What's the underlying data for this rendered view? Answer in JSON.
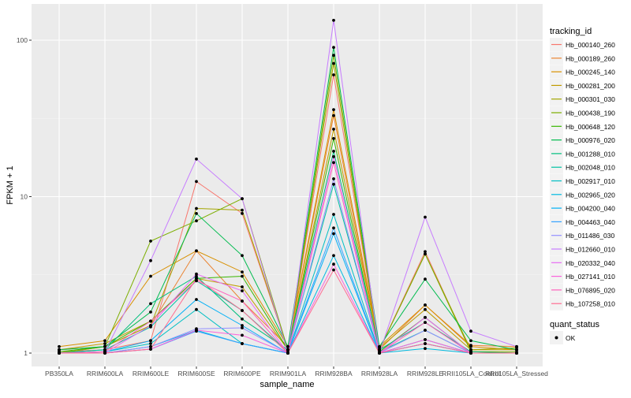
{
  "chart_data": {
    "type": "line",
    "title": "",
    "xlabel": "sample_name",
    "ylabel": "FPKM + 1",
    "yscale": "log10",
    "ylim": [
      0.95,
      150
    ],
    "yticks": [
      1,
      10,
      100
    ],
    "ytick_labels": [
      "1",
      "10",
      "100"
    ],
    "grid": true,
    "legend_position": "right",
    "categories": [
      "PB350LA",
      "RRIM600LA",
      "RRIM600LE",
      "RRIM600SE",
      "RRIM600PE",
      "RRIM901LA",
      "RRIM928BA",
      "RRIM928LA",
      "RRIM928LE",
      "RRII105LA_Control",
      "RRII105LA_Stressed"
    ],
    "legend_title": "tracking_id",
    "shape_legend_title": "quant_status",
    "shape_legend_items": [
      "OK"
    ],
    "series": [
      {
        "name": "Hb_000140_260",
        "color": "#F8766D",
        "values": [
          1.02,
          1.05,
          1.2,
          12.5,
          7.8,
          1.05,
          60,
          1.05,
          4.45,
          1.02,
          1.0
        ]
      },
      {
        "name": "Hb_000189_260",
        "color": "#EA8331",
        "values": [
          1.05,
          1.1,
          1.5,
          4.5,
          2.15,
          1.1,
          33,
          1.05,
          2.03,
          1.12,
          1.1
        ]
      },
      {
        "name": "Hb_000245_140",
        "color": "#D89000",
        "values": [
          1.1,
          1.2,
          3.1,
          4.5,
          3.3,
          1.1,
          36,
          1.1,
          2.03,
          1.1,
          1.05
        ]
      },
      {
        "name": "Hb_000281_200",
        "color": "#C09B00",
        "values": [
          1.05,
          1.15,
          1.6,
          3.0,
          2.65,
          1.05,
          27,
          1.08,
          1.9,
          1.05,
          1.05
        ]
      },
      {
        "name": "Hb_000301_030",
        "color": "#A3A500",
        "values": [
          1.0,
          1.1,
          1.5,
          8.4,
          8.2,
          1.05,
          71,
          1.05,
          4.3,
          1.05,
          1.08
        ]
      },
      {
        "name": "Hb_000438_190",
        "color": "#7CAE00",
        "values": [
          1.0,
          1.1,
          5.2,
          7.0,
          9.7,
          1.05,
          80,
          1.05,
          4.3,
          1.02,
          1.02
        ]
      },
      {
        "name": "Hb_000648_120",
        "color": "#39B600",
        "values": [
          1.02,
          1.1,
          1.6,
          3.0,
          3.1,
          1.05,
          23.5,
          1.02,
          1.69,
          1.0,
          1.0
        ]
      },
      {
        "name": "Hb_000976_020",
        "color": "#00BB4E",
        "values": [
          1.05,
          1.1,
          1.83,
          7.8,
          4.2,
          1.1,
          90,
          1.1,
          2.97,
          1.2,
          1.05
        ]
      },
      {
        "name": "Hb_001288_010",
        "color": "#00BF7D",
        "values": [
          1.0,
          1.05,
          2.07,
          3.1,
          1.65,
          1.05,
          19.5,
          1.05,
          1.57,
          1.02,
          1.0
        ]
      },
      {
        "name": "Hb_002048_010",
        "color": "#00C1A3",
        "values": [
          1.0,
          1.05,
          1.47,
          2.9,
          1.87,
          1.02,
          12,
          1.02,
          1.4,
          1.0,
          1.0
        ]
      },
      {
        "name": "Hb_002917_010",
        "color": "#00BFC4",
        "values": [
          1.0,
          1.02,
          1.15,
          1.9,
          1.15,
          1.0,
          7.7,
          1.0,
          1.22,
          1.0,
          1.0
        ]
      },
      {
        "name": "Hb_002965_020",
        "color": "#00BAE0",
        "values": [
          1.0,
          1.0,
          1.1,
          1.4,
          1.15,
          1.0,
          4.2,
          1.0,
          1.07,
          1.0,
          1.0
        ]
      },
      {
        "name": "Hb_004200_040",
        "color": "#00B0F6",
        "values": [
          1.0,
          1.02,
          1.2,
          2.2,
          1.5,
          1.0,
          5.8,
          1.0,
          1.15,
          1.0,
          1.0
        ]
      },
      {
        "name": "Hb_004463_040",
        "color": "#35A2FF",
        "values": [
          1.0,
          1.0,
          1.06,
          1.38,
          1.15,
          1.0,
          6.3,
          1.0,
          1.15,
          1.0,
          1.0
        ]
      },
      {
        "name": "Hb_011486_030",
        "color": "#9590FF",
        "values": [
          1.0,
          1.0,
          1.1,
          1.43,
          1.45,
          1.0,
          13,
          1.0,
          1.4,
          1.0,
          1.0
        ]
      },
      {
        "name": "Hb_012660_010",
        "color": "#C77CFF",
        "values": [
          1.0,
          1.02,
          3.9,
          17.4,
          9.7,
          1.0,
          134,
          1.0,
          7.4,
          1.38,
          1.1
        ]
      },
      {
        "name": "Hb_020332_040",
        "color": "#E76BF3",
        "values": [
          1.0,
          1.0,
          1.5,
          3.2,
          2.5,
          1.0,
          18,
          1.0,
          1.69,
          1.0,
          1.0
        ]
      },
      {
        "name": "Hb_027141_010",
        "color": "#FA62DB",
        "values": [
          1.0,
          1.0,
          1.06,
          1.4,
          1.3,
          1.0,
          3.7,
          1.0,
          1.22,
          1.0,
          1.0
        ]
      },
      {
        "name": "Hb_076895_020",
        "color": "#FF62BC",
        "values": [
          1.0,
          1.02,
          1.6,
          2.9,
          2.15,
          1.0,
          16.5,
          1.0,
          1.57,
          1.0,
          1.0
        ]
      },
      {
        "name": "Hb_107258_010",
        "color": "#FF6C91",
        "values": [
          1.0,
          1.0,
          1.06,
          3.0,
          1.87,
          1.0,
          3.4,
          1.0,
          1.15,
          1.0,
          1.0
        ]
      }
    ]
  }
}
